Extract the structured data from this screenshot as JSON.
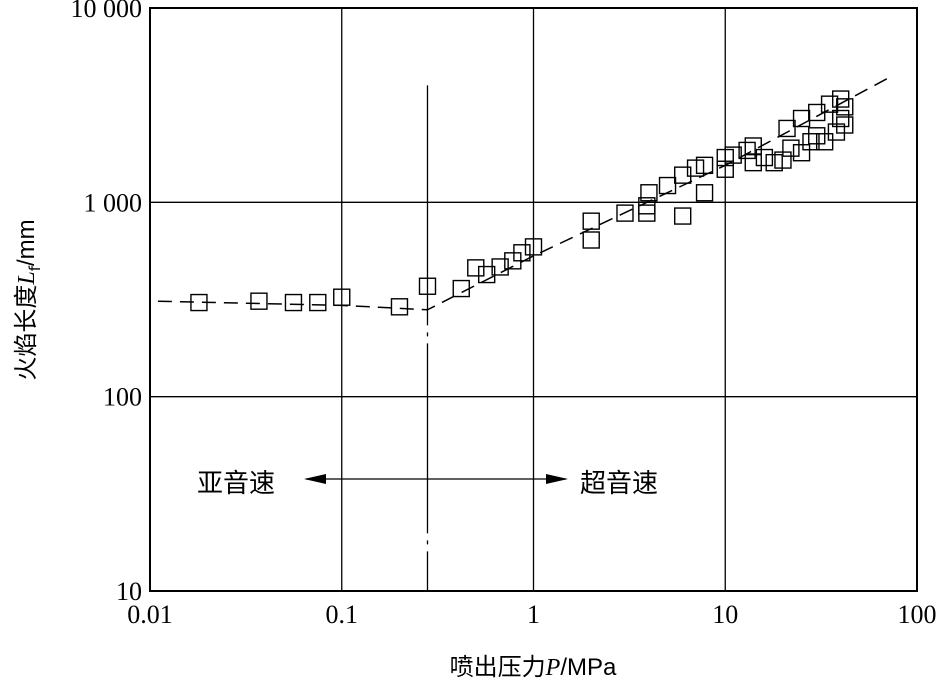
{
  "chart_data": {
    "type": "scatter",
    "x_scale": "log",
    "y_scale": "log",
    "xlim": [
      0.01,
      100
    ],
    "ylim": [
      10,
      10000
    ],
    "grid": true,
    "xlabel": {
      "prefix": "喷出压力",
      "var": "P",
      "unit": "/MPa"
    },
    "ylabel": {
      "prefix": "火焰长度",
      "var": "L",
      "sub": "f",
      "unit": "/mm"
    },
    "x_ticks": [
      {
        "value": 0.01,
        "label": "0.01"
      },
      {
        "value": 0.1,
        "label": "0.1"
      },
      {
        "value": 1,
        "label": "1"
      },
      {
        "value": 10,
        "label": "10"
      },
      {
        "value": 100,
        "label": "100"
      }
    ],
    "y_ticks": [
      {
        "value": 10,
        "label": "10"
      },
      {
        "value": 100,
        "label": "100"
      },
      {
        "value": 1000,
        "label": "1 000"
      },
      {
        "value": 10000,
        "label": "10 000"
      }
    ],
    "transition_pressure": 0.28,
    "annotations": {
      "subsonic": "亚音速",
      "supersonic": "超音速"
    },
    "series": [
      {
        "marker": "open-square",
        "points": [
          [
            0.018,
            305
          ],
          [
            0.037,
            310
          ],
          [
            0.056,
            305
          ],
          [
            0.075,
            305
          ],
          [
            0.1,
            325
          ],
          [
            0.2,
            290
          ],
          [
            0.28,
            370
          ],
          [
            0.42,
            360
          ],
          [
            0.5,
            460
          ],
          [
            0.57,
            425
          ],
          [
            0.67,
            465
          ],
          [
            0.78,
            500
          ],
          [
            0.87,
            550
          ],
          [
            1.0,
            590
          ],
          [
            2.0,
            640
          ],
          [
            2.0,
            800
          ],
          [
            3.0,
            880
          ],
          [
            3.9,
            880
          ],
          [
            3.9,
            960
          ],
          [
            4.0,
            1120
          ],
          [
            5.0,
            1220
          ],
          [
            6.0,
            850
          ],
          [
            6.0,
            1380
          ],
          [
            7.0,
            1500
          ],
          [
            7.8,
            1120
          ],
          [
            7.8,
            1550
          ],
          [
            10.0,
            1480
          ],
          [
            10.0,
            1700
          ],
          [
            11.0,
            1750
          ],
          [
            13.0,
            1850
          ],
          [
            14.0,
            1600
          ],
          [
            14.0,
            1950
          ],
          [
            16.0,
            1700
          ],
          [
            18.0,
            1600
          ],
          [
            20.0,
            1650
          ],
          [
            21.0,
            2400
          ],
          [
            22.0,
            1900
          ],
          [
            25.0,
            1800
          ],
          [
            25.0,
            2700
          ],
          [
            28.0,
            2050
          ],
          [
            30.0,
            2200
          ],
          [
            30.0,
            2900
          ],
          [
            33.0,
            2050
          ],
          [
            35.0,
            3200
          ],
          [
            38.0,
            2300
          ],
          [
            40.0,
            2700
          ],
          [
            40.0,
            3400
          ],
          [
            42.0,
            2500
          ],
          [
            42.0,
            3100
          ]
        ]
      }
    ],
    "fit_line": {
      "style": "dashed",
      "points": [
        [
          0.011,
          310
        ],
        [
          0.1,
          295
        ],
        [
          0.2,
          285
        ],
        [
          0.28,
          280
        ],
        [
          1.0,
          530
        ],
        [
          10.0,
          1550
        ],
        [
          72.0,
          4400
        ]
      ]
    }
  }
}
